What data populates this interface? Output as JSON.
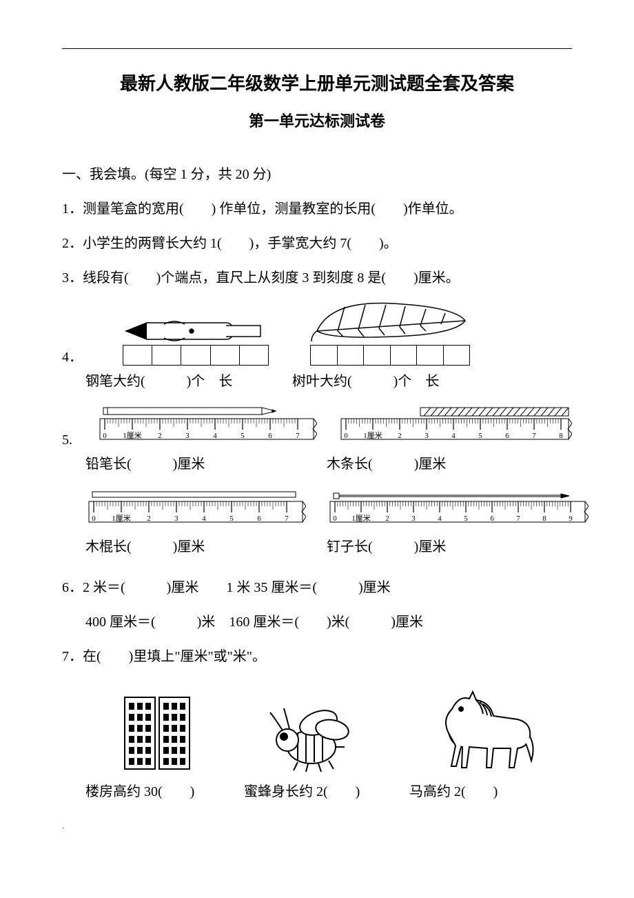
{
  "title": "最新人教版二年级数学上册单元测试题全套及答案",
  "subtitle": "第一单元达标测试卷",
  "section1": {
    "heading": "一、我会填。(每空 1 分，共 20 分)",
    "q1": "1．测量笔盒的宽用(　　) 作单位，测量教室的长用(　　)作单位。",
    "q2": "2．小学生的两臂长大约 1(　　)，手掌宽大约 7(　　)。",
    "q3": "3．线段有(　　)个端点，直尺上从刻度 3 到刻度 8 是(　　)厘米。",
    "q4num": "4．",
    "q4_pen_label": "钢笔大约(　　　)个　长",
    "q4_leaf_label": "树叶大约(　　　)个　长",
    "q5num": "5.",
    "q5_pencil": "铅笔长(　　　)厘米",
    "q5_wood": "木条长(　　　)厘米",
    "q5_stick": "木棍长(　　　)厘米",
    "q5_nail": "钉子长(　　　)厘米",
    "q6_line1": "6．2 米＝(　　　)厘米　　1 米 35 厘米＝(　　　)厘米",
    "q6_line2": "400 厘米＝(　　　)米　160 厘米＝(　　)米(　　　)厘米",
    "q7": "7．在(　　)里填上\"厘米\"或\"米\"。",
    "q7_building": "楼房高约 30(　　)",
    "q7_bee": "蜜蜂身长约 2(　　)",
    "q7_horse": "马高约 2(　　)"
  },
  "ruler": {
    "labels_0_7": [
      "0",
      "1厘米",
      "2",
      "3",
      "4",
      "5",
      "6",
      "7"
    ],
    "labels_0_8": [
      "0",
      "1厘米",
      "2",
      "3",
      "4",
      "5",
      "6",
      "7",
      "8"
    ],
    "labels_0_9": [
      "0",
      "1厘米",
      "2",
      "3",
      "4",
      "5",
      "6",
      "7",
      "8",
      "9"
    ],
    "stroke": "#000000",
    "fontsize": 11
  },
  "colors": {
    "text": "#000000",
    "bg": "#ffffff"
  }
}
